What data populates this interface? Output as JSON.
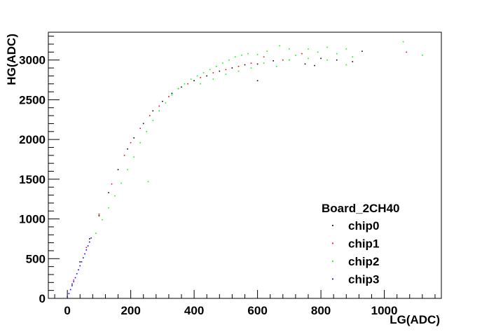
{
  "chart_data": {
    "type": "scatter",
    "title": "",
    "xlabel": "LG(ADC)",
    "ylabel": "HG(ADC)",
    "xlim": [
      -60,
      1180
    ],
    "ylim": [
      0,
      3350
    ],
    "xticks": [
      0,
      200,
      400,
      600,
      800,
      1000
    ],
    "yticks": [
      0,
      500,
      1000,
      1500,
      2000,
      2500,
      3000
    ],
    "grid": false,
    "legend": {
      "title": "Board_2CH40",
      "placement": "bottom-right"
    },
    "series": [
      {
        "name": "chip0",
        "color": "#000000",
        "points": [
          [
            15,
            180
          ],
          [
            40,
            460
          ],
          [
            70,
            750
          ],
          [
            100,
            1040
          ],
          [
            130,
            1330
          ],
          [
            160,
            1620
          ],
          [
            190,
            1880
          ],
          [
            210,
            2020
          ],
          [
            240,
            2200
          ],
          [
            270,
            2360
          ],
          [
            300,
            2480
          ],
          [
            330,
            2580
          ],
          [
            360,
            2660
          ],
          [
            400,
            2740
          ],
          [
            440,
            2800
          ],
          [
            480,
            2860
          ],
          [
            520,
            2900
          ],
          [
            560,
            2940
          ],
          [
            600,
            2950
          ],
          [
            650,
            2990
          ],
          [
            700,
            3000
          ],
          [
            750,
            2950
          ],
          [
            800,
            3020
          ],
          [
            850,
            3000
          ],
          [
            900,
            2980
          ],
          [
            930,
            3110
          ],
          [
            780,
            2930
          ],
          [
            600,
            2740
          ]
        ]
      },
      {
        "name": "chip1",
        "color": "#ff0000",
        "points": [
          [
            20,
            230
          ],
          [
            60,
            640
          ],
          [
            100,
            1060
          ],
          [
            140,
            1440
          ],
          [
            180,
            1800
          ],
          [
            200,
            1960
          ],
          [
            230,
            2140
          ],
          [
            260,
            2300
          ],
          [
            290,
            2420
          ],
          [
            320,
            2540
          ],
          [
            350,
            2640
          ],
          [
            380,
            2700
          ],
          [
            420,
            2780
          ],
          [
            460,
            2840
          ],
          [
            500,
            2880
          ],
          [
            540,
            2920
          ],
          [
            580,
            2960
          ],
          [
            620,
            3040
          ],
          [
            680,
            3000
          ],
          [
            740,
            3080
          ],
          [
            1070,
            3100
          ]
        ]
      },
      {
        "name": "chip2",
        "color": "#00ff00",
        "points": [
          [
            90,
            820
          ],
          [
            110,
            990
          ],
          [
            130,
            1140
          ],
          [
            150,
            1290
          ],
          [
            170,
            1450
          ],
          [
            190,
            1620
          ],
          [
            210,
            1780
          ],
          [
            230,
            1960
          ],
          [
            250,
            2100
          ],
          [
            270,
            2240
          ],
          [
            290,
            2360
          ],
          [
            310,
            2460
          ],
          [
            330,
            2560
          ],
          [
            350,
            2640
          ],
          [
            370,
            2700
          ],
          [
            390,
            2760
          ],
          [
            410,
            2800
          ],
          [
            430,
            2840
          ],
          [
            450,
            2880
          ],
          [
            470,
            2920
          ],
          [
            490,
            2960
          ],
          [
            510,
            3000
          ],
          [
            530,
            3040
          ],
          [
            550,
            3060
          ],
          [
            570,
            3080
          ],
          [
            600,
            3070
          ],
          [
            630,
            3110
          ],
          [
            670,
            3180
          ],
          [
            700,
            3140
          ],
          [
            720,
            3060
          ],
          [
            760,
            3140
          ],
          [
            790,
            3100
          ],
          [
            820,
            3160
          ],
          [
            850,
            3080
          ],
          [
            880,
            3140
          ],
          [
            900,
            3040
          ],
          [
            1060,
            3230
          ],
          [
            1120,
            3060
          ],
          [
            255,
            1470
          ],
          [
            420,
            2700
          ],
          [
            460,
            2760
          ],
          [
            500,
            2820
          ],
          [
            540,
            2860
          ],
          [
            580,
            2900
          ],
          [
            620,
            2960
          ],
          [
            660,
            2920
          ],
          [
            700,
            3000
          ],
          [
            760,
            3020
          ],
          [
            820,
            3000
          ],
          [
            880,
            2940
          ]
        ]
      },
      {
        "name": "chip3",
        "color": "#0000ff",
        "points": [
          [
            0,
            20
          ],
          [
            5,
            60
          ],
          [
            10,
            110
          ],
          [
            15,
            160
          ],
          [
            20,
            210
          ],
          [
            25,
            260
          ],
          [
            30,
            310
          ],
          [
            35,
            360
          ],
          [
            40,
            410
          ],
          [
            45,
            460
          ],
          [
            50,
            510
          ],
          [
            55,
            560
          ],
          [
            60,
            610
          ],
          [
            65,
            660
          ],
          [
            70,
            710
          ],
          [
            75,
            760
          ]
        ]
      }
    ]
  }
}
